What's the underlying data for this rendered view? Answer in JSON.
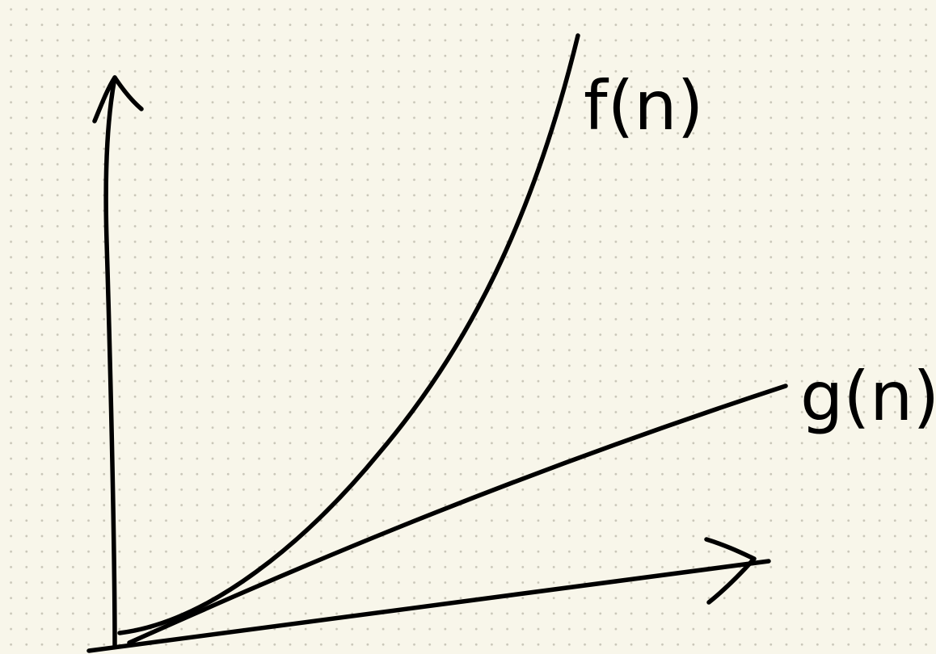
{
  "diagram": {
    "curve_labels": {
      "f": "f(n)",
      "g": "g(n)"
    },
    "colors": {
      "paper": "#f8f6ea",
      "ink": "#000000",
      "dot_grid": "#c9c6b8"
    }
  }
}
